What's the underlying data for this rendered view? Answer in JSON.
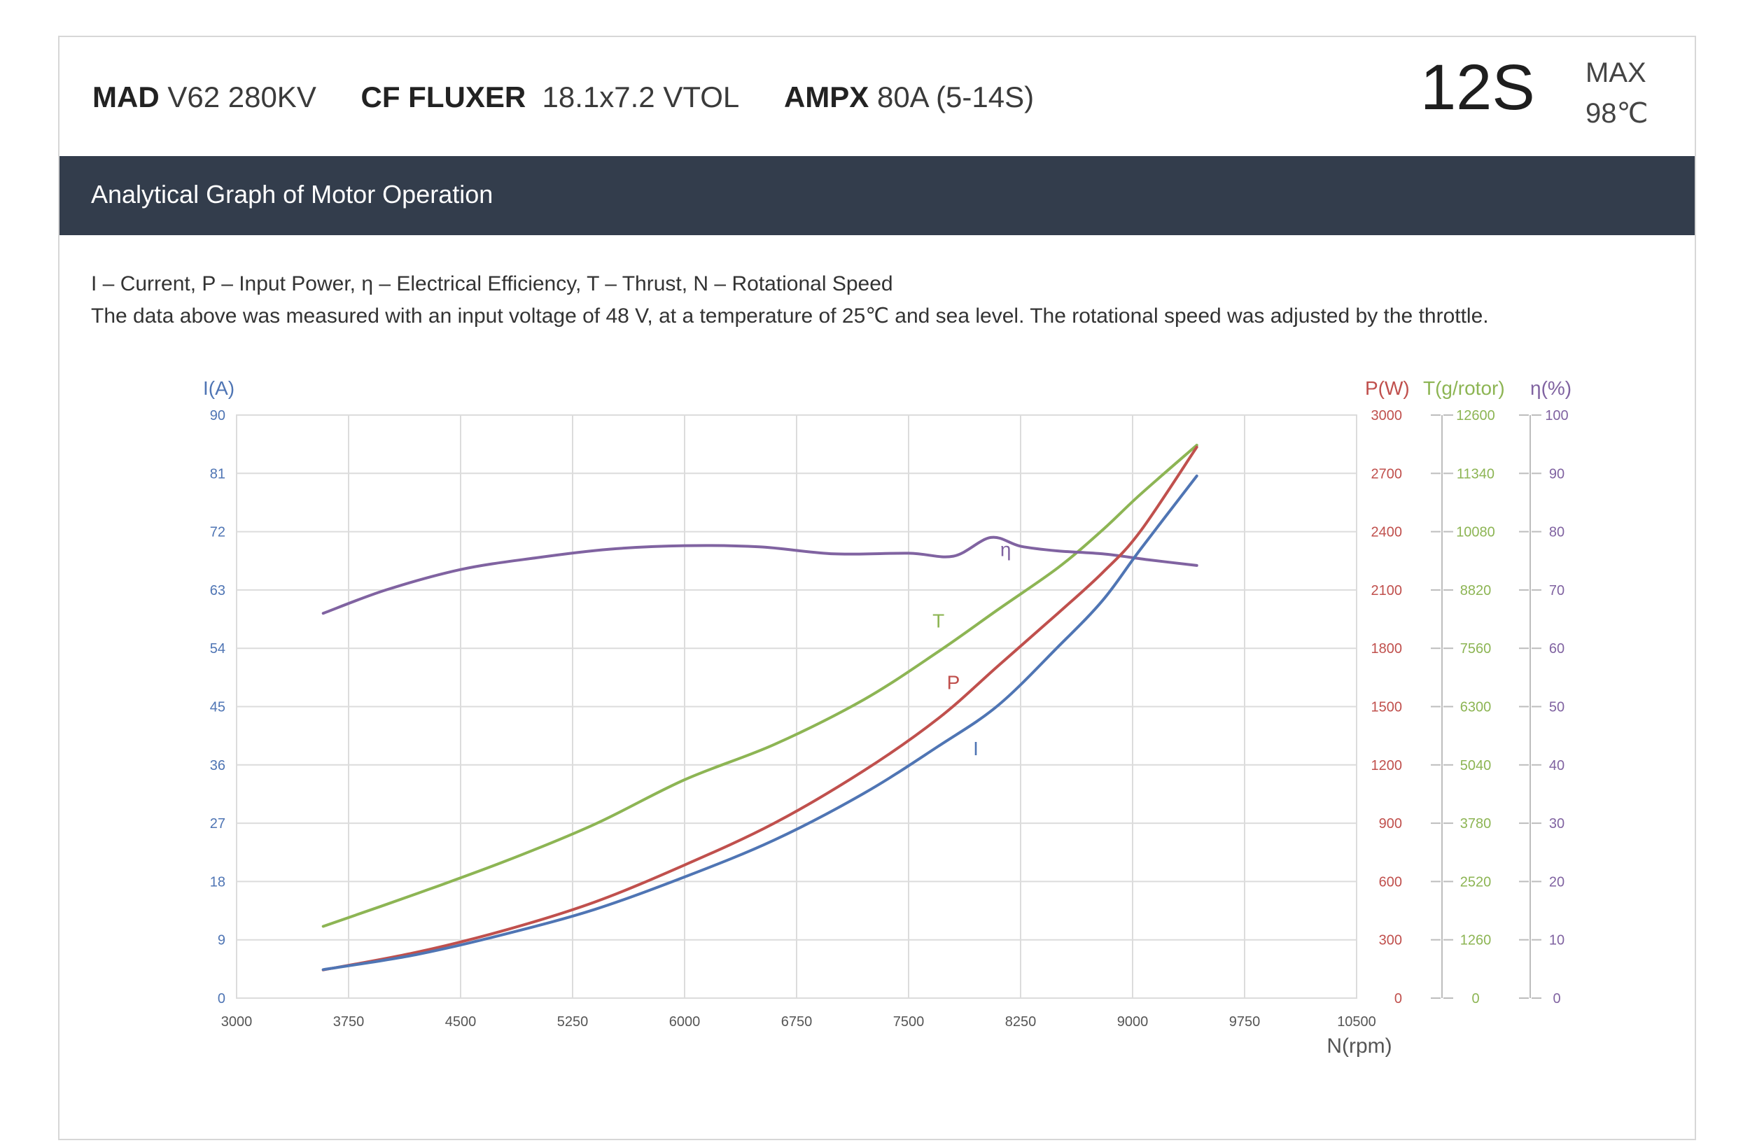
{
  "header": {
    "motor_brand": "MAD",
    "motor_model": "V62 280KV",
    "prop_brand": "CF FLUXER",
    "prop_model": "18.1x7.2 VTOL",
    "esc_brand": "AMPX",
    "esc_model": "80A  (5-14S)",
    "cells": "12S",
    "max_label": "MAX",
    "max_temp": "98℃"
  },
  "banner": {
    "title": "Analytical Graph of Motor Operation"
  },
  "notes": {
    "legend_line": "I – Current, P – Input Power, η – Electrical Efficiency, T – Thrust,   N – Rotational Speed",
    "conditions_line": "The data above was measured with an input voltage of 48 V, at a temperature of 25℃ and sea level. The rotational speed was adjusted by the throttle."
  },
  "colors": {
    "current": "#4f75b4",
    "power": "#c0504d",
    "thrust": "#8db554",
    "efficiency": "#8063a1",
    "grid": "#dcdcdc",
    "banner": "#333d4c"
  },
  "chart_data": {
    "type": "line",
    "xlabel": "N(rpm)",
    "xlim": [
      3000,
      10500
    ],
    "x_ticks": [
      "3000",
      "3750",
      "4500",
      "5250",
      "6000",
      "6750",
      "7500",
      "8250",
      "9000",
      "9750",
      "10500"
    ],
    "axes": [
      {
        "key": "current",
        "label": "I(A)",
        "range": [
          0,
          90
        ],
        "ticks": [
          "0",
          "9",
          "18",
          "27",
          "36",
          "45",
          "54",
          "63",
          "72",
          "81",
          "90"
        ]
      },
      {
        "key": "power",
        "label": "P(W)",
        "range": [
          0,
          3000
        ],
        "ticks": [
          "0",
          "300",
          "600",
          "900",
          "1200",
          "1500",
          "1800",
          "2100",
          "2400",
          "2700",
          "3000"
        ]
      },
      {
        "key": "thrust",
        "label": "T(g/rotor)",
        "range": [
          0,
          12600
        ],
        "ticks": [
          "0",
          "1260",
          "2520",
          "3780",
          "5040",
          "6300",
          "7560",
          "8820",
          "10080",
          "11340",
          "12600"
        ]
      },
      {
        "key": "efficiency",
        "label": "η(%)",
        "range": [
          0,
          100
        ],
        "ticks": [
          "0",
          "10",
          "20",
          "30",
          "40",
          "50",
          "60",
          "70",
          "80",
          "90",
          "100"
        ]
      }
    ],
    "grid": true,
    "series": [
      {
        "name": "I",
        "axis": "current",
        "colorKey": "current",
        "x": [
          3580,
          4200,
          4800,
          5400,
          6000,
          6600,
          7200,
          7700,
          8100,
          8500,
          8800,
          9050,
          9430
        ],
        "y": [
          4.4,
          6.7,
          9.9,
          13.7,
          18.7,
          24.4,
          31.6,
          38.9,
          45.2,
          54.2,
          61.4,
          69.2,
          80.6
        ],
        "label_at": [
          7950,
          37.5
        ]
      },
      {
        "name": "P",
        "axis": "power",
        "colorKey": "power",
        "x": [
          3580,
          4200,
          4800,
          5400,
          6000,
          6600,
          7200,
          7700,
          8100,
          8500,
          8800,
          9050,
          9430
        ],
        "y": [
          145,
          235,
          350,
          495,
          685,
          900,
          1170,
          1440,
          1710,
          1980,
          2190,
          2400,
          2835
        ],
        "label_at": [
          7800,
          1590
        ]
      },
      {
        "name": "T",
        "axis": "thrust",
        "colorKey": "thrust",
        "x": [
          3580,
          4200,
          4800,
          5400,
          6000,
          6600,
          7200,
          7700,
          8100,
          8500,
          8800,
          9050,
          9430
        ],
        "y": [
          1550,
          2250,
          2960,
          3760,
          4720,
          5480,
          6450,
          7490,
          8400,
          9300,
          10120,
          10880,
          11950
        ],
        "label_at": [
          7700,
          8010
        ]
      },
      {
        "name": "η",
        "axis": "efficiency",
        "colorKey": "efficiency",
        "x": [
          3580,
          4000,
          4500,
          5000,
          5500,
          6000,
          6500,
          7000,
          7500,
          7800,
          8050,
          8250,
          8500,
          8800,
          9100,
          9430
        ],
        "y": [
          66.0,
          70.0,
          73.5,
          75.5,
          77.0,
          77.6,
          77.4,
          76.2,
          76.3,
          75.8,
          79.0,
          77.5,
          76.7,
          76.2,
          75.2,
          74.2
        ],
        "label_at": [
          8150,
          75.8
        ]
      }
    ]
  }
}
